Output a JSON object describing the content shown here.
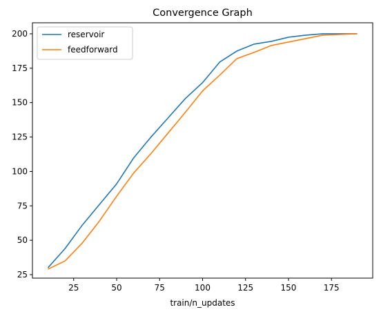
{
  "chart_data": {
    "type": "line",
    "title": "Convergence Graph",
    "xlabel": "train/n_updates",
    "ylabel": "",
    "xlim": [
      10,
      190
    ],
    "ylim": [
      22.5,
      208
    ],
    "xticks": [
      25,
      50,
      75,
      100,
      125,
      150,
      175
    ],
    "yticks": [
      25,
      50,
      75,
      100,
      125,
      150,
      175,
      200
    ],
    "grid": false,
    "legend_position": "top-left",
    "x": [
      10,
      20,
      30,
      40,
      50,
      60,
      70,
      80,
      90,
      100,
      110,
      120,
      130,
      140,
      150,
      160,
      170,
      180,
      190
    ],
    "series": [
      {
        "name": "reservoir",
        "color": "#1f77b4",
        "values": [
          30,
          44,
          61,
          76,
          91,
          110,
          125,
          139,
          153,
          164.5,
          179.5,
          187.5,
          192.5,
          194.5,
          197.5,
          199,
          200,
          200,
          200
        ]
      },
      {
        "name": "feedforward",
        "color": "#ff7f0e",
        "values": [
          29,
          35,
          48,
          64,
          82,
          99,
          113,
          128,
          143,
          158.5,
          170,
          182,
          186.5,
          191.5,
          194,
          196.5,
          199,
          199.5,
          200
        ]
      }
    ]
  }
}
